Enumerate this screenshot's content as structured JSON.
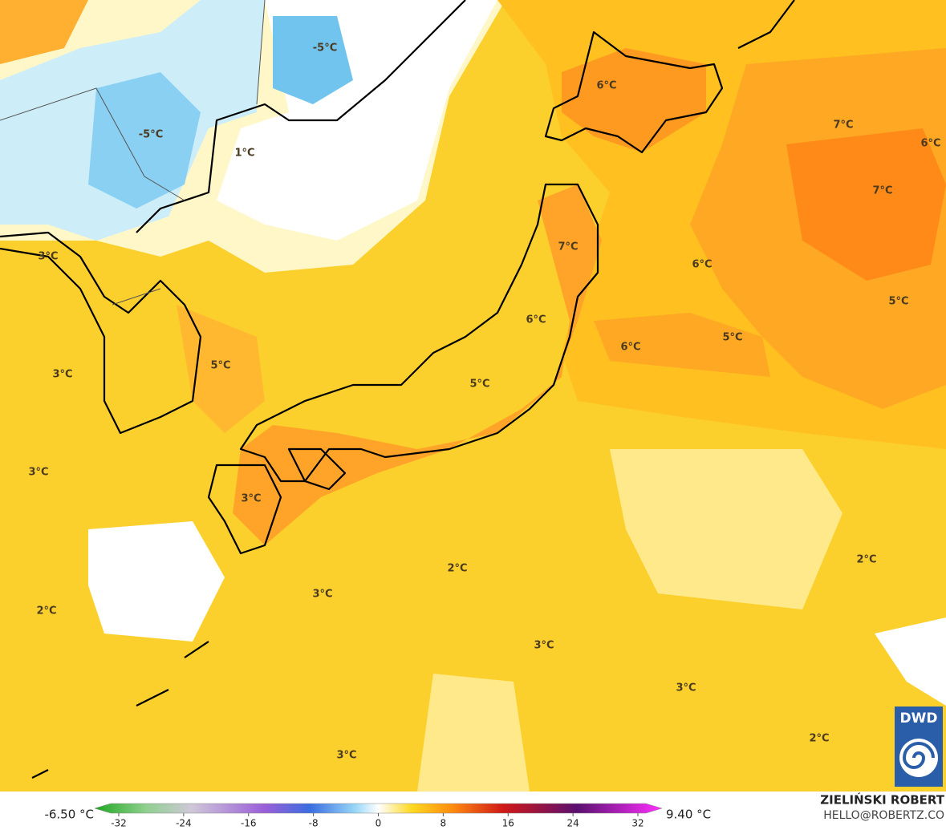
{
  "map": {
    "labels": [
      "-5°C",
      "-5°C",
      "1°C",
      "6°C",
      "7°C",
      "6°C",
      "7°C",
      "7°C",
      "6°C",
      "3°C",
      "5°C",
      "6°C",
      "6°C",
      "5°C",
      "5°C",
      "3°C",
      "5°C",
      "3°C",
      "3°C",
      "2°C",
      "2°C",
      "3°C",
      "2°C",
      "3°C",
      "3°C",
      "2°C",
      "3°C"
    ]
  },
  "legend": {
    "min_label": "-6.50 °C",
    "max_label": "9.40 °C",
    "ticks": [
      -32,
      -24,
      -16,
      -8,
      0,
      8,
      16,
      24,
      32
    ]
  },
  "credit": {
    "name": "ZIELIŃSKI ROBERT",
    "email": "HELLO@ROBERTZ.CO"
  },
  "logo": "DWD"
}
